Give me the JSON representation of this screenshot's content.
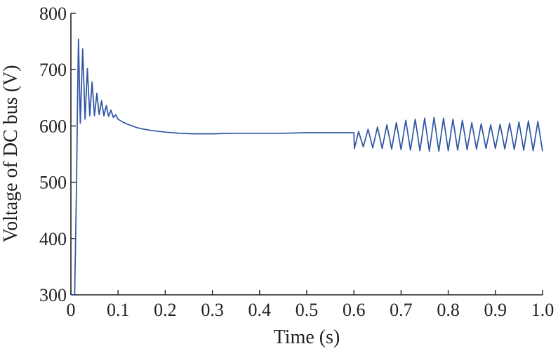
{
  "chart_data": {
    "type": "line",
    "title": "",
    "xlabel": "Time (s)",
    "ylabel": "Voltage of DC bus (V)",
    "xlim": [
      0,
      1.0
    ],
    "ylim": [
      300,
      800
    ],
    "xticks": [
      "0",
      "0.1",
      "0.2",
      "0.3",
      "0.4",
      "0.5",
      "0.6",
      "0.7",
      "0.8",
      "0.9",
      "1.0"
    ],
    "yticks": [
      "300",
      "400",
      "500",
      "600",
      "700",
      "800"
    ],
    "grid": false,
    "legend": "none",
    "series": [
      {
        "color": "#2f55a4",
        "x": [
          0,
          0.008,
          0.012,
          0.014,
          0.016,
          0.02,
          0.025,
          0.03,
          0.035,
          0.04,
          0.045,
          0.05,
          0.055,
          0.06,
          0.065,
          0.07,
          0.075,
          0.08,
          0.085,
          0.09,
          0.095,
          0.1,
          0.11,
          0.12,
          0.13,
          0.14,
          0.15,
          0.17,
          0.2,
          0.23,
          0.26,
          0.3,
          0.35,
          0.4,
          0.45,
          0.5,
          0.55,
          0.6,
          0.601,
          0.61,
          0.62,
          0.63,
          0.64,
          0.65,
          0.66,
          0.67,
          0.68,
          0.69,
          0.7,
          0.71,
          0.72,
          0.73,
          0.74,
          0.75,
          0.76,
          0.77,
          0.78,
          0.79,
          0.8,
          0.81,
          0.82,
          0.83,
          0.84,
          0.85,
          0.86,
          0.87,
          0.88,
          0.89,
          0.9,
          0.91,
          0.92,
          0.93,
          0.94,
          0.95,
          0.96,
          0.97,
          0.98,
          0.99,
          1.0
        ],
        "y": [
          300,
          300,
          500,
          640,
          754,
          605,
          737,
          612,
          702,
          618,
          678,
          618,
          658,
          620,
          645,
          618,
          636,
          617,
          628,
          615,
          620,
          612,
          607,
          603,
          600,
          597,
          595,
          592,
          589,
          587,
          586,
          586,
          587,
          587,
          587,
          588,
          588,
          588,
          560,
          590,
          563,
          594,
          561,
          598,
          560,
          602,
          559,
          606,
          558,
          610,
          557,
          612,
          556,
          614,
          555,
          615,
          555,
          614,
          556,
          612,
          557,
          610,
          558,
          606,
          559,
          604,
          560,
          602,
          560,
          603,
          559,
          605,
          558,
          607,
          557,
          609,
          556,
          608,
          555
        ]
      }
    ]
  }
}
